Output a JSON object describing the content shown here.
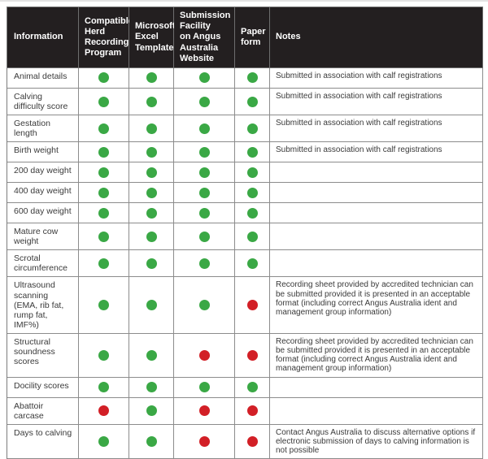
{
  "colors": {
    "green": "#3aa845",
    "red": "#d21f26",
    "header_bg": "#231f20",
    "border": "#8c8c8c"
  },
  "table": {
    "columns": [
      "Information",
      "Compatible\nHerd\nRecording\nProgram",
      "Microsoft\nExcel\nTemplate",
      "Submission\nFacility\non Angus\nAustralia\nWebsite",
      "Paper\nform",
      "Notes"
    ],
    "rows": [
      {
        "information": "Animal details",
        "marks": [
          "green",
          "green",
          "green",
          "green"
        ],
        "notes": "Submitted in association with calf registrations"
      },
      {
        "information": "Calving difficulty score",
        "marks": [
          "green",
          "green",
          "green",
          "green"
        ],
        "notes": "Submitted in association with calf registrations"
      },
      {
        "information": "Gestation length",
        "marks": [
          "green",
          "green",
          "green",
          "green"
        ],
        "notes": "Submitted in association with calf registrations"
      },
      {
        "information": "Birth weight",
        "marks": [
          "green",
          "green",
          "green",
          "green"
        ],
        "notes": "Submitted in association with calf registrations"
      },
      {
        "information": "200 day weight",
        "marks": [
          "green",
          "green",
          "green",
          "green"
        ],
        "notes": ""
      },
      {
        "information": "400 day weight",
        "marks": [
          "green",
          "green",
          "green",
          "green"
        ],
        "notes": ""
      },
      {
        "information": "600 day weight",
        "marks": [
          "green",
          "green",
          "green",
          "green"
        ],
        "notes": ""
      },
      {
        "information": "Mature cow weight",
        "marks": [
          "green",
          "green",
          "green",
          "green"
        ],
        "notes": ""
      },
      {
        "information": "Scrotal circumference",
        "marks": [
          "green",
          "green",
          "green",
          "green"
        ],
        "notes": ""
      },
      {
        "information": "Ultrasound scanning (EMA, rib fat, rump fat, IMF%)",
        "marks": [
          "green",
          "green",
          "green",
          "red"
        ],
        "notes": "Recording sheet provided by accredited technician can be submitted provided it is presented in an acceptable format (including correct Angus Australia ident and management group information)"
      },
      {
        "information": "Structural soundness scores",
        "marks": [
          "green",
          "green",
          "red",
          "red"
        ],
        "notes": "Recording sheet provided by accredited technician can be submitted provided it is presented in an acceptable format (including correct Angus Australia ident and management group information)"
      },
      {
        "information": "Docility scores",
        "marks": [
          "green",
          "green",
          "green",
          "green"
        ],
        "notes": ""
      },
      {
        "information": "Abattoir carcase",
        "marks": [
          "red",
          "green",
          "red",
          "red"
        ],
        "notes": ""
      },
      {
        "information": "Days to calving",
        "marks": [
          "green",
          "green",
          "red",
          "red"
        ],
        "notes": "Contact Angus Australia to discuss alternative options if electronic submission of days to calving information is not possible"
      }
    ]
  }
}
